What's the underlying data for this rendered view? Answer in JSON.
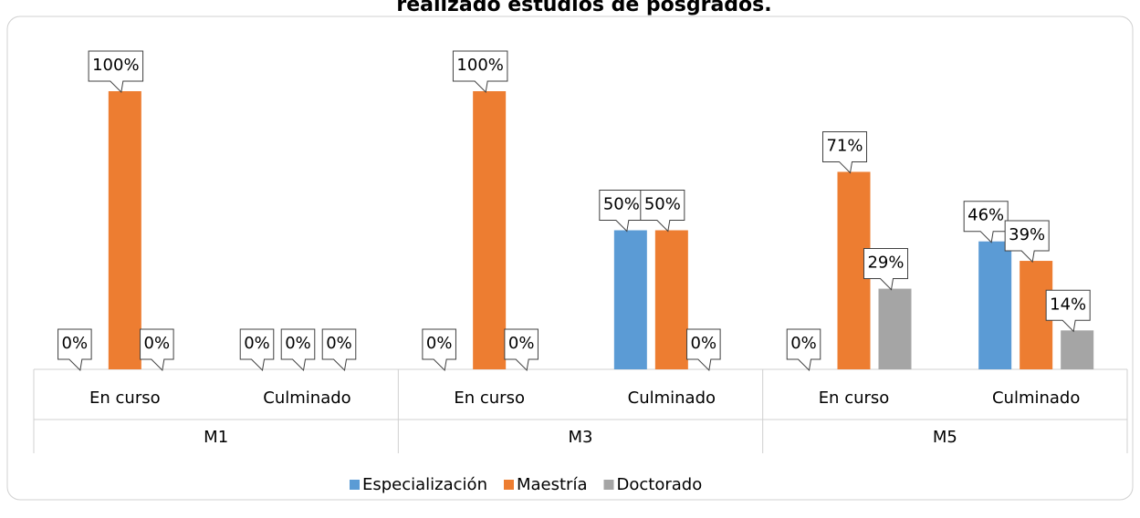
{
  "chart_data": {
    "type": "bar",
    "title": "realizado estudios de posgrados.",
    "categories": [
      "En curso",
      "Culminado",
      "En curso",
      "Culminado",
      "En curso",
      "Culminado"
    ],
    "groups": [
      "M1",
      "M3",
      "M5"
    ],
    "ylim": [
      0,
      100
    ],
    "series": [
      {
        "name": "Especialización",
        "color": "#5b9bd5",
        "values": [
          0,
          0,
          0,
          50,
          0,
          46
        ],
        "value_labels": [
          "0%",
          "0%",
          "0%",
          "50%",
          "0%",
          "46%"
        ]
      },
      {
        "name": "Maestría",
        "color": "#ed7d31",
        "values": [
          100,
          0,
          100,
          50,
          71,
          39
        ],
        "value_labels": [
          "100%",
          "0%",
          "100%",
          "50%",
          "71%",
          "39%"
        ]
      },
      {
        "name": "Doctorado",
        "color": "#a5a5a5",
        "values": [
          0,
          0,
          0,
          0,
          29,
          14
        ],
        "value_labels": [
          "0%",
          "0%",
          "0%",
          "0%",
          "29%",
          "14%"
        ]
      }
    ],
    "legend": "bottom"
  }
}
